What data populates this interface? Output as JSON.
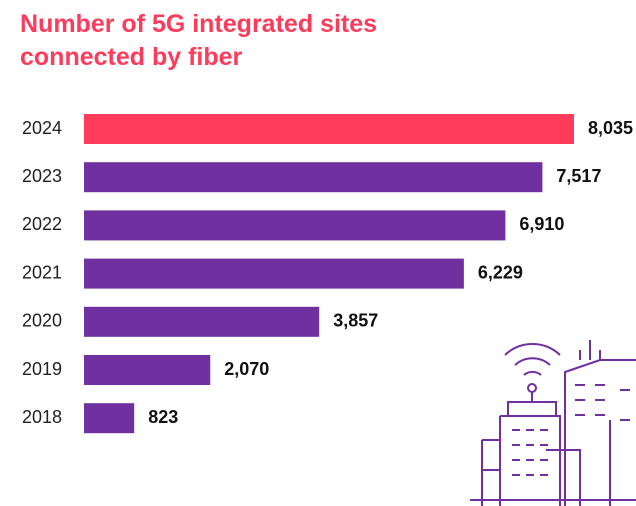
{
  "chart_data": {
    "type": "hbar",
    "title": "Number of 5G integrated sites connected by fiber",
    "categories": [
      "2024",
      "2023",
      "2022",
      "2021",
      "2020",
      "2019",
      "2018"
    ],
    "values": [
      8035,
      7517,
      6910,
      6229,
      3857,
      2070,
      823
    ],
    "value_labels": [
      "8,035",
      "7,517",
      "6,910",
      "6,229",
      "3,857",
      "2,070",
      "823"
    ],
    "colors": [
      "#ff3b5c",
      "#7030a0",
      "#7030a0",
      "#7030a0",
      "#7030a0",
      "#7030a0",
      "#7030a0"
    ]
  }
}
